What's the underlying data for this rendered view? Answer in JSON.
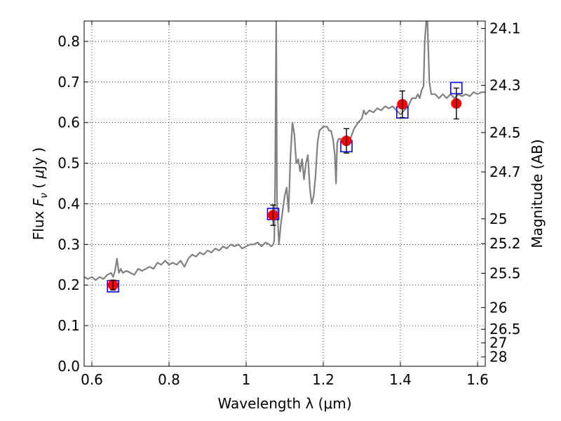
{
  "chart_data": {
    "type": "line",
    "xlabel": "Wavelength  λ (μm)",
    "ylabel_left": "Flux  F_ν  ( μJy )",
    "ylabel_right": "Magnitude (AB)",
    "xlim": [
      0.58,
      1.62
    ],
    "ylim": [
      0.0,
      0.85
    ],
    "grid": true,
    "x_ticks": [
      0.6,
      0.8,
      1.0,
      1.2,
      1.4,
      1.6
    ],
    "x_tick_labels": [
      "0.6",
      "0.8",
      "1",
      "1.2",
      "1.4",
      "1.6"
    ],
    "y_ticks": [
      0.0,
      0.1,
      0.2,
      0.3,
      0.4,
      0.5,
      0.6,
      0.7,
      0.8
    ],
    "y_tick_labels": [
      "0.0",
      "0.1",
      "0.2",
      "0.3",
      "0.4",
      "0.5",
      "0.6",
      "0.7",
      "0.8"
    ],
    "right_ticks": [
      {
        "flux": 0.8317,
        "label": "24.1"
      },
      {
        "flux": 0.6918,
        "label": "24.3"
      },
      {
        "flux": 0.5754,
        "label": "24.5"
      },
      {
        "flux": 0.4786,
        "label": "24.7"
      },
      {
        "flux": 0.3631,
        "label": "25"
      },
      {
        "flux": 0.302,
        "label": "25.2"
      },
      {
        "flux": 0.2291,
        "label": "25.5"
      },
      {
        "flux": 0.1445,
        "label": "26"
      },
      {
        "flux": 0.0912,
        "label": "26.5"
      },
      {
        "flux": 0.0575,
        "label": "27"
      },
      {
        "flux": 0.0229,
        "label": "28"
      }
    ],
    "series": [
      {
        "kind": "spectrum",
        "color": "#808080",
        "points": [
          [
            0.58,
            0.22
          ],
          [
            0.59,
            0.215
          ],
          [
            0.6,
            0.22
          ],
          [
            0.61,
            0.212
          ],
          [
            0.62,
            0.22
          ],
          [
            0.63,
            0.215
          ],
          [
            0.64,
            0.225
          ],
          [
            0.65,
            0.23
          ],
          [
            0.655,
            0.22
          ],
          [
            0.66,
            0.235
          ],
          [
            0.665,
            0.265
          ],
          [
            0.67,
            0.23
          ],
          [
            0.675,
            0.24
          ],
          [
            0.68,
            0.23
          ],
          [
            0.69,
            0.235
          ],
          [
            0.7,
            0.23
          ],
          [
            0.71,
            0.225
          ],
          [
            0.72,
            0.24
          ],
          [
            0.73,
            0.235
          ],
          [
            0.74,
            0.24
          ],
          [
            0.75,
            0.245
          ],
          [
            0.76,
            0.24
          ],
          [
            0.77,
            0.255
          ],
          [
            0.78,
            0.25
          ],
          [
            0.79,
            0.26
          ],
          [
            0.8,
            0.25
          ],
          [
            0.81,
            0.255
          ],
          [
            0.82,
            0.25
          ],
          [
            0.83,
            0.26
          ],
          [
            0.84,
            0.245
          ],
          [
            0.85,
            0.265
          ],
          [
            0.86,
            0.275
          ],
          [
            0.87,
            0.27
          ],
          [
            0.88,
            0.28
          ],
          [
            0.89,
            0.275
          ],
          [
            0.9,
            0.285
          ],
          [
            0.91,
            0.28
          ],
          [
            0.92,
            0.29
          ],
          [
            0.93,
            0.285
          ],
          [
            0.94,
            0.295
          ],
          [
            0.95,
            0.29
          ],
          [
            0.96,
            0.3
          ],
          [
            0.97,
            0.295
          ],
          [
            0.98,
            0.3
          ],
          [
            0.99,
            0.29
          ],
          [
            1.0,
            0.295
          ],
          [
            1.01,
            0.3
          ],
          [
            1.02,
            0.3
          ],
          [
            1.03,
            0.305
          ],
          [
            1.04,
            0.295
          ],
          [
            1.05,
            0.305
          ],
          [
            1.06,
            0.3
          ],
          [
            1.065,
            0.295
          ],
          [
            1.07,
            0.3
          ],
          [
            1.073,
            0.31
          ],
          [
            1.075,
            0.45
          ],
          [
            1.078,
            0.85
          ],
          [
            1.08,
            0.4
          ],
          [
            1.085,
            0.3
          ],
          [
            1.09,
            0.35
          ],
          [
            1.1,
            0.42
          ],
          [
            1.105,
            0.44
          ],
          [
            1.11,
            0.38
          ],
          [
            1.115,
            0.52
          ],
          [
            1.12,
            0.6
          ],
          [
            1.125,
            0.57
          ],
          [
            1.13,
            0.5
          ],
          [
            1.135,
            0.51
          ],
          [
            1.14,
            0.48
          ],
          [
            1.145,
            0.51
          ],
          [
            1.15,
            0.46
          ],
          [
            1.155,
            0.5
          ],
          [
            1.16,
            0.52
          ],
          [
            1.165,
            0.44
          ],
          [
            1.17,
            0.4
          ],
          [
            1.175,
            0.42
          ],
          [
            1.18,
            0.47
          ],
          [
            1.185,
            0.55
          ],
          [
            1.19,
            0.58
          ],
          [
            1.2,
            0.59
          ],
          [
            1.21,
            0.59
          ],
          [
            1.215,
            0.58
          ],
          [
            1.22,
            0.58
          ],
          [
            1.225,
            0.56
          ],
          [
            1.23,
            0.52
          ],
          [
            1.233,
            0.45
          ],
          [
            1.236,
            0.55
          ],
          [
            1.24,
            0.56
          ],
          [
            1.25,
            0.56
          ],
          [
            1.26,
            0.555
          ],
          [
            1.27,
            0.56
          ],
          [
            1.28,
            0.585
          ],
          [
            1.29,
            0.6
          ],
          [
            1.3,
            0.61
          ],
          [
            1.305,
            0.63
          ],
          [
            1.31,
            0.62
          ],
          [
            1.32,
            0.63
          ],
          [
            1.33,
            0.625
          ],
          [
            1.34,
            0.635
          ],
          [
            1.35,
            0.63
          ],
          [
            1.36,
            0.64
          ],
          [
            1.37,
            0.635
          ],
          [
            1.38,
            0.64
          ],
          [
            1.39,
            0.63
          ],
          [
            1.4,
            0.62
          ],
          [
            1.41,
            0.63
          ],
          [
            1.42,
            0.64
          ],
          [
            1.43,
            0.66
          ],
          [
            1.44,
            0.66
          ],
          [
            1.445,
            0.67
          ],
          [
            1.45,
            0.66
          ],
          [
            1.455,
            0.68
          ],
          [
            1.46,
            0.69
          ],
          [
            1.463,
            0.8
          ],
          [
            1.467,
            0.85
          ],
          [
            1.47,
            0.85
          ],
          [
            1.475,
            0.7
          ],
          [
            1.48,
            0.67
          ],
          [
            1.49,
            0.67
          ],
          [
            1.5,
            0.66
          ],
          [
            1.51,
            0.67
          ],
          [
            1.52,
            0.66
          ],
          [
            1.53,
            0.67
          ],
          [
            1.54,
            0.66
          ],
          [
            1.55,
            0.67
          ],
          [
            1.56,
            0.665
          ],
          [
            1.57,
            0.67
          ],
          [
            1.58,
            0.665
          ],
          [
            1.59,
            0.675
          ],
          [
            1.6,
            0.67
          ],
          [
            1.61,
            0.675
          ],
          [
            1.62,
            0.675
          ]
        ]
      },
      {
        "kind": "observed",
        "marker": "circle",
        "color": "#ff0000",
        "points": [
          {
            "x": 0.655,
            "y": 0.2,
            "err": 0.012
          },
          {
            "x": 1.07,
            "y": 0.372,
            "err": 0.025
          },
          {
            "x": 1.26,
            "y": 0.555,
            "err": 0.03
          },
          {
            "x": 1.405,
            "y": 0.645,
            "err": 0.033
          },
          {
            "x": 1.545,
            "y": 0.647,
            "err": 0.038
          }
        ]
      },
      {
        "kind": "model",
        "marker": "square",
        "color": "#0000ff",
        "points": [
          {
            "x": 0.655,
            "y": 0.197
          },
          {
            "x": 1.07,
            "y": 0.375
          },
          {
            "x": 1.26,
            "y": 0.542
          },
          {
            "x": 1.405,
            "y": 0.625
          },
          {
            "x": 1.545,
            "y": 0.685
          }
        ]
      }
    ]
  }
}
